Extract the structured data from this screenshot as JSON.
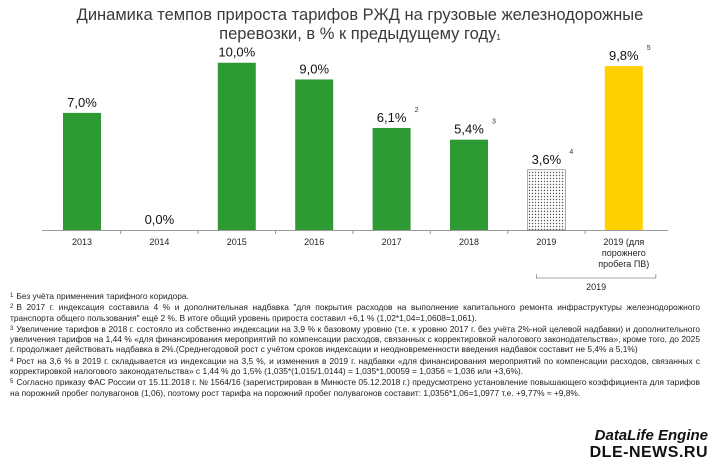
{
  "header": {
    "title_line1": "Динамика темпов прироста тарифов РЖД на грузовые железнодорожные",
    "title_line2": "перевозки, в % к предыдущему году",
    "title_note": "1"
  },
  "chart_data": {
    "type": "bar",
    "title": "Динамика темпов прироста тарифов РЖД на грузовые железнодорожные перевозки, в % к предыдущему году",
    "ylim": [
      0,
      11
    ],
    "grid": false,
    "categories": [
      "2013",
      "2014",
      "2015",
      "2016",
      "2017",
      "2018",
      "2019",
      "2019 (для порожнего пробега ПВ)"
    ],
    "category_lines": [
      [
        "2013"
      ],
      [
        "2014"
      ],
      [
        "2015"
      ],
      [
        "2016"
      ],
      [
        "2017"
      ],
      [
        "2018"
      ],
      [
        "2019"
      ],
      [
        "2019 (для",
        "порожнего",
        "пробега ПВ)"
      ]
    ],
    "values": [
      7.0,
      0.0,
      10.0,
      9.0,
      6.1,
      5.4,
      3.6,
      9.8
    ],
    "data_labels": [
      "7,0%",
      "0,0%",
      "10,0%",
      "9,0%",
      "6,1%",
      "5,4%",
      "3,6%",
      "9,8%"
    ],
    "footnote_marks": [
      "",
      "",
      "",
      "",
      "2",
      "3",
      "4",
      "5"
    ],
    "bar_styles": [
      "solid",
      "solid",
      "solid",
      "solid",
      "solid",
      "solid",
      "dotted",
      "solid"
    ],
    "bar_colors": [
      "#2e9a34",
      "#2e9a34",
      "#2e9a34",
      "#2e9a34",
      "#2e9a34",
      "#2e9a34",
      "#ffffff",
      "#ffd000"
    ],
    "group_bracket_label": "2019",
    "group_bracket_span": [
      6,
      7
    ]
  },
  "footnotes": [
    {
      "mark": "1",
      "text": "Без учёта применения тарифного коридора."
    },
    {
      "mark": "2",
      "text": "В 2017 г. индексация составила 4 % и дополнительная надбавка \"для покрытия расходов на выполнение капитального ремонта инфраструктуры железнодорожного транспорта общего пользования\" ещё 2 %. В итоге общий уровень прироста составил +6,1 % (1,02*1,04=1,0608=1,061)."
    },
    {
      "mark": "3",
      "text": "Увеличение тарифов в 2018 г. состояло из собственно индексации на 3,9 % к базовому уровню (т.е. к уровню 2017 г. без учёта 2%-ной целевой надбавки) и дополнительного увеличения тарифов на 1,44 % «для финансирования мероприятий по компенсации расходов, связанных с корректировкой налогового законодательства», кроме того, до 2025 г. продолжает действовать надбавка в 2%.(Среднегодовой рост с учётом сроков индексации и неодновременности введения надбавок составит не 5,4% а 5,1%)"
    },
    {
      "mark": "4",
      "text": "Рост на 3,6 % в 2019 г. складывается из индексации на 3,5 %, и изменения в 2019 г. надбавки «для финансирования мероприятий по компенсации расходов, связанных с корректировкой налогового законодательства» с 1,44 % до 1,5% (1,035*(1,015/1,0144) = 1,035*1,00059 = 1,0356 ≈  1,036 или +3,6%)."
    },
    {
      "mark": "5",
      "text": "Согласно приказу ФАС России от 15.11.2018 г. № 1564/16 (зарегистрирован в Минюсте 05.12.2018 г.) предусмотрено установление повышающего коэффициента для тарифов на порожний пробег полувагонов (1,06), поэтому рост тарифа на порожний пробег полувагонов составит: 1,0356*1,06=1,0977 т.е. +9,77%  ≈ +9,8%."
    }
  ],
  "watermark": {
    "line1": "DataLife Engine",
    "line2": "DLE-NEWS.RU"
  }
}
